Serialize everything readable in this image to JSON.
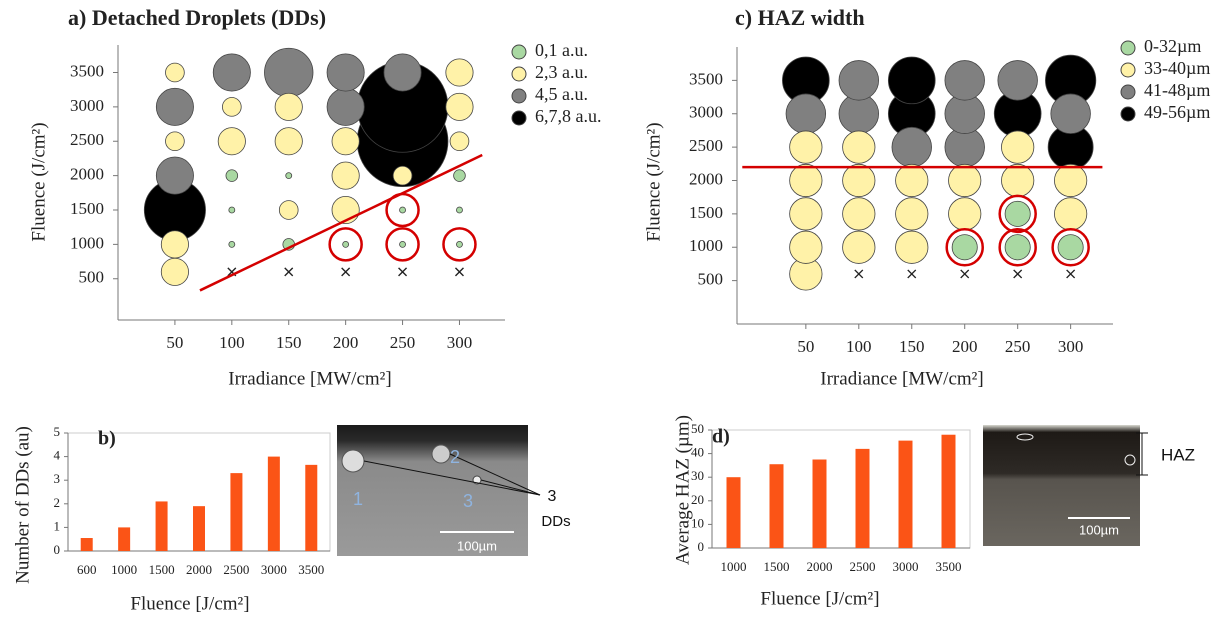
{
  "chart_data": [
    {
      "type": "bubble",
      "title": "a) Detached Droplets (DDs)",
      "x_label": "Irradiance [MW/cm²]",
      "y_label": "Fluence (J/cm²)",
      "xlim": [
        0,
        340
      ],
      "ylim": [
        -100,
        3900
      ],
      "xticks": [
        50,
        100,
        150,
        200,
        250,
        300
      ],
      "yticks": [
        500,
        1000,
        1500,
        2000,
        2500,
        3000,
        3500
      ],
      "series": [
        {
          "name": "0,1 a.u.",
          "color": "#a9d8a2",
          "x": [
            100,
            100,
            100,
            150,
            150,
            200,
            250,
            250,
            300,
            300,
            300
          ],
          "y": [
            1000,
            1500,
            2000,
            1000,
            2000,
            1000,
            1000,
            1500,
            1000,
            1500,
            2000
          ],
          "size": [
            0,
            0,
            1,
            1,
            0,
            0,
            0,
            0,
            0,
            0,
            1
          ]
        },
        {
          "name": "2,3 a.u.",
          "color": "#fff2a8",
          "x": [
            50,
            50,
            50,
            50,
            100,
            100,
            150,
            150,
            150,
            200,
            200,
            200,
            250,
            300,
            300,
            300
          ],
          "y": [
            600,
            1000,
            2500,
            3500,
            2500,
            3000,
            1500,
            2500,
            3000,
            1500,
            2000,
            2500,
            2000,
            2500,
            3000,
            3500
          ],
          "size": [
            3,
            3,
            2,
            2,
            3,
            2,
            2,
            3,
            3,
            3,
            3,
            3,
            2,
            2,
            3,
            3
          ]
        },
        {
          "name": "4,5 a.u.",
          "color": "#808080",
          "x": [
            50,
            50,
            100,
            150,
            200,
            200,
            250
          ],
          "y": [
            2000,
            3000,
            3500,
            3500,
            3000,
            3500,
            3500
          ],
          "size": [
            4,
            4,
            4,
            5,
            4,
            4,
            4
          ]
        },
        {
          "name": "6,7,8 a.u.",
          "color": "#000000",
          "x": [
            50,
            250,
            250
          ],
          "y": [
            1500,
            2500,
            3000
          ],
          "size": [
            6,
            8,
            8
          ]
        }
      ],
      "crosses": {
        "x": [
          100,
          150,
          200,
          250,
          300
        ],
        "y": [
          600,
          600,
          600,
          600,
          600
        ]
      },
      "highlighted": {
        "x": [
          200,
          250,
          250,
          300
        ],
        "y": [
          1000,
          1000,
          1500,
          1000
        ]
      },
      "threshold_line": {
        "color": "#d40000",
        "x": [
          72,
          320
        ],
        "y": [
          330,
          2300
        ]
      }
    },
    {
      "type": "bar",
      "title": "b)",
      "x_label": "Fluence [J/cm²]",
      "y_label": "Number of DDs (au)",
      "color": "#fb5416",
      "categories": [
        "600",
        "1000",
        "1500",
        "2000",
        "2500",
        "3000",
        "3500"
      ],
      "values": [
        0.55,
        1.0,
        2.1,
        1.9,
        3.3,
        4.0,
        3.65
      ],
      "ylim": [
        0,
        5
      ],
      "yticks": [
        0,
        1,
        2,
        3,
        4,
        5
      ]
    },
    {
      "type": "bubble",
      "title": "c) HAZ width",
      "x_label": "Irradiance [MW/cm²]",
      "y_label": "Fluence (J/cm²)",
      "xlim": [
        -15,
        340
      ],
      "ylim": [
        -150,
        4000
      ],
      "xticks": [
        50,
        100,
        150,
        200,
        250,
        300
      ],
      "yticks": [
        500,
        1000,
        1500,
        2000,
        2500,
        3000,
        3500
      ],
      "series": [
        {
          "name": "0-32µm",
          "color": "#a9d8a2",
          "x": [
            200,
            250,
            250,
            300
          ],
          "y": [
            1000,
            1000,
            1500,
            1000
          ],
          "size": [
            28,
            28,
            28,
            28
          ]
        },
        {
          "name": "33-40µm",
          "color": "#fff2a8",
          "x": [
            50,
            50,
            50,
            50,
            50,
            100,
            100,
            100,
            100,
            150,
            150,
            150,
            200,
            200,
            250,
            250,
            300,
            300
          ],
          "y": [
            600,
            1000,
            1500,
            2000,
            2500,
            1000,
            1500,
            2000,
            2500,
            1000,
            1500,
            2000,
            1500,
            2000,
            2000,
            2500,
            1500,
            2000
          ],
          "size": [
            36,
            36,
            36,
            36,
            36,
            36,
            36,
            36,
            36,
            36,
            36,
            36,
            36,
            36,
            36,
            36,
            36,
            36
          ]
        },
        {
          "name": "41-48µm",
          "color": "#808080",
          "x": [
            50,
            100,
            100,
            150,
            200,
            200,
            200,
            250,
            300
          ],
          "y": [
            3000,
            3000,
            3500,
            2500,
            2500,
            3000,
            3500,
            3500,
            3000
          ],
          "size": [
            44,
            44,
            44,
            44,
            44,
            44,
            44,
            44,
            44
          ]
        },
        {
          "name": "49-56µm",
          "color": "#000000",
          "x": [
            50,
            150,
            150,
            250,
            300,
            300
          ],
          "y": [
            3500,
            3000,
            3500,
            3000,
            2500,
            3500
          ],
          "size": [
            52,
            52,
            52,
            52,
            50,
            56
          ]
        }
      ],
      "crosses": {
        "x": [
          100,
          150,
          200,
          250,
          300
        ],
        "y": [
          600,
          600,
          600,
          600,
          600
        ]
      },
      "highlighted": {
        "x": [
          200,
          250,
          250,
          300
        ],
        "y": [
          1000,
          1000,
          1500,
          1000
        ]
      },
      "threshold_line": {
        "color": "#d40000",
        "x": [
          -10,
          330
        ],
        "y": [
          2200,
          2200
        ]
      }
    },
    {
      "type": "bar",
      "title": "d)",
      "x_label": "Fluence [J/cm²]",
      "y_label": "Average HAZ (µm)",
      "color": "#fb5416",
      "categories": [
        "1000",
        "1500",
        "2000",
        "2500",
        "3000",
        "3500"
      ],
      "values": [
        30,
        35.5,
        37.5,
        42,
        45.5,
        48
      ],
      "ylim": [
        0,
        50
      ],
      "yticks": [
        0,
        10,
        20,
        30,
        40,
        50
      ]
    }
  ],
  "micrographs": [
    {
      "labels": [
        "1",
        "2",
        "3",
        "3",
        "DDs"
      ],
      "scale_bar": "100µm"
    },
    {
      "labels": [
        "HAZ"
      ],
      "scale_bar": "100µm"
    }
  ]
}
